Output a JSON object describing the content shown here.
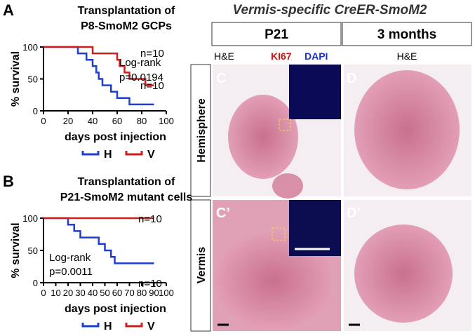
{
  "chart_data": [
    {
      "type": "line",
      "step": true,
      "panel": "A",
      "title_lines": [
        "Transplantation of",
        "P8-SmoM2 GCPs"
      ],
      "y_label": "% survival",
      "x_label": "days post injection",
      "xlim": [
        0,
        100
      ],
      "xticks": [
        0,
        20,
        40,
        60,
        80,
        100
      ],
      "ylim": [
        0,
        100
      ],
      "yticks": [
        0,
        50,
        100
      ],
      "annotations": [
        "Log-rank",
        "p=0.0194",
        "n=10",
        "n=10"
      ],
      "series": [
        {
          "name": "H",
          "color": "#1f3fd0",
          "x": [
            0,
            28,
            35,
            40,
            43,
            45,
            48,
            55,
            60,
            70,
            90
          ],
          "values": [
            100,
            90,
            80,
            70,
            60,
            50,
            40,
            30,
            20,
            10,
            10
          ]
        },
        {
          "name": "V",
          "color": "#c8201e",
          "x": [
            0,
            40,
            60,
            62,
            66,
            70,
            83,
            90
          ],
          "values": [
            100,
            90,
            80,
            70,
            60,
            50,
            40,
            40
          ]
        }
      ]
    },
    {
      "type": "line",
      "step": true,
      "panel": "B",
      "title_lines": [
        "Transplantation of",
        "P21-SmoM2 mutant cells"
      ],
      "y_label": "% survival",
      "x_label": "days post injection",
      "xlim": [
        0,
        100
      ],
      "xticks": [
        0,
        10,
        20,
        30,
        40,
        50,
        60,
        70,
        80,
        90,
        100
      ],
      "ylim": [
        0,
        100
      ],
      "yticks": [
        0,
        50,
        100
      ],
      "annotations": [
        "n=10",
        "Log-rank",
        "p=0.0011",
        "n=10"
      ],
      "series": [
        {
          "name": "H",
          "color": "#1f3fd0",
          "x": [
            0,
            20,
            25,
            30,
            45,
            50,
            55,
            58,
            90
          ],
          "values": [
            100,
            90,
            80,
            70,
            60,
            50,
            40,
            30,
            30
          ]
        },
        {
          "name": "V",
          "color": "#c8201e",
          "x": [
            0,
            90
          ],
          "values": [
            100,
            100
          ]
        }
      ]
    }
  ],
  "figure": {
    "title": "Vermis-specific CreER-SmoM2",
    "columns": [
      "P21",
      "3 months"
    ],
    "stains": [
      "H&E",
      "KI67",
      "DAPI",
      "H&E"
    ],
    "rows": [
      "Hemisphere",
      "Vermis"
    ],
    "panels": [
      "C",
      "D",
      "C’",
      "D’"
    ]
  }
}
